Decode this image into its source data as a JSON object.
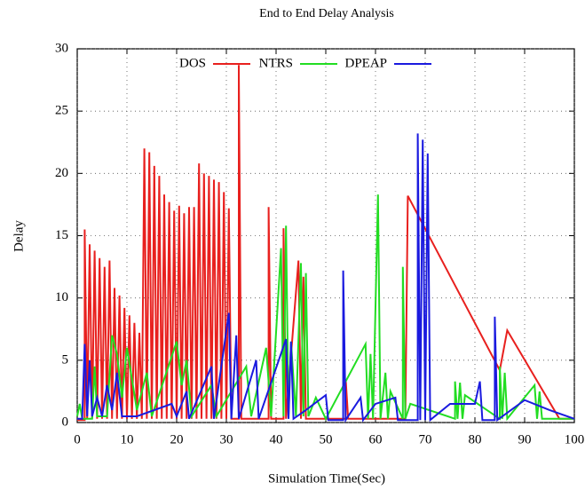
{
  "chart_data": {
    "type": "line",
    "title": "End to End Delay Analysis",
    "x_label": "Simulation Time(Sec)",
    "y_label": "Delay",
    "xlim": [
      0,
      100
    ],
    "xticks": [
      0,
      10,
      20,
      30,
      40,
      50,
      60,
      70,
      80,
      90,
      100
    ],
    "ylim": [
      0,
      30
    ],
    "yticks": [
      0,
      5,
      10,
      15,
      20,
      25,
      30
    ],
    "grid": true,
    "legend": "top",
    "series": [
      {
        "name": "DOS",
        "color": "#e8201e",
        "x": [
          0,
          1.5,
          1.5,
          2,
          2.5,
          3,
          3.5,
          4,
          4.5,
          5,
          5.5,
          6,
          6.5,
          7,
          7.5,
          8,
          8.5,
          9,
          9.5,
          10,
          10.5,
          11,
          11.5,
          12,
          12.5,
          13,
          13.5,
          14,
          14.5,
          15,
          15.5,
          16,
          16.5,
          17,
          17.5,
          18,
          18.5,
          19,
          19.5,
          20,
          20.5,
          21,
          21.5,
          22,
          22.5,
          23,
          23.5,
          24,
          24.5,
          25,
          25.5,
          26,
          26.5,
          27,
          27.5,
          28,
          28.5,
          29,
          29.5,
          30,
          30.5,
          31,
          32.5,
          32.5,
          33,
          38.5,
          38.5,
          39,
          41.5,
          41.5,
          42,
          44.5,
          45,
          45.5,
          46,
          54,
          54,
          54.5,
          66,
          66.5,
          85,
          86.5,
          97,
          100
        ],
        "values": [
          0.2,
          0.2,
          15.5,
          0.3,
          14.3,
          0.3,
          13.8,
          0.3,
          13.2,
          0.3,
          12.5,
          0.3,
          13,
          0.3,
          10.8,
          0.3,
          10.2,
          0.3,
          9.2,
          0.3,
          8.6,
          0.3,
          8,
          0.3,
          7.2,
          0.3,
          22,
          0.3,
          21.7,
          0.3,
          20.6,
          0.3,
          19.8,
          0.3,
          18.3,
          0.3,
          17.7,
          0.3,
          17,
          0.3,
          17.4,
          0.3,
          16.8,
          0.3,
          17.3,
          0.3,
          17.3,
          0.3,
          20.8,
          0.3,
          20,
          0.3,
          19.8,
          0.3,
          19.5,
          0.3,
          19.3,
          0.3,
          18.5,
          0.3,
          17.2,
          0.3,
          0.3,
          28.7,
          0.3,
          0.3,
          17.3,
          0.3,
          0.3,
          15.6,
          0.3,
          13,
          0.3,
          11.7,
          0.3,
          0.3,
          3.5,
          0.3,
          0.3,
          18.2,
          4.2,
          7.4,
          0.3,
          0.3
        ]
      },
      {
        "name": "NTRS",
        "color": "#22dd22",
        "x": [
          0,
          0.5,
          1,
          3,
          3.5,
          4,
          6,
          7,
          8,
          9,
          10,
          11,
          12,
          14,
          15,
          20,
          21,
          22,
          23,
          27,
          28,
          34,
          35,
          38,
          39,
          41,
          41.5,
          42,
          42.5,
          43,
          44,
          45,
          45.5,
          46,
          46.5,
          48,
          50,
          58,
          58.5,
          59,
          59.5,
          60.5,
          61,
          62,
          62.5,
          63,
          65.5,
          65.5,
          66,
          67,
          76,
          76,
          76.5,
          77,
          77.5,
          78,
          85,
          85,
          85.5,
          86,
          86.5,
          92,
          92.5,
          93,
          93.5,
          100
        ],
        "values": [
          0.5,
          1.5,
          0.3,
          0.3,
          4.5,
          0.5,
          0.5,
          7,
          5.5,
          2,
          6,
          3.5,
          1,
          4,
          0.5,
          6.5,
          3,
          5,
          0.5,
          3,
          0.5,
          4.5,
          0.5,
          6,
          0.5,
          14,
          0.5,
          15.8,
          0.5,
          6.5,
          0.5,
          12.8,
          0.5,
          12,
          0.5,
          2,
          0.3,
          6.3,
          0.3,
          5.5,
          0.3,
          18.3,
          0.3,
          4,
          0.3,
          2.5,
          0.3,
          12.5,
          0.3,
          1.5,
          0.3,
          3.3,
          0.3,
          3.2,
          0.3,
          2.2,
          0.3,
          4.5,
          0.3,
          4,
          0.3,
          3,
          0.3,
          2.5,
          0.3,
          0.3
        ]
      },
      {
        "name": "DPEAP",
        "color": "#1a1adf",
        "x": [
          0,
          1,
          1.5,
          2,
          2.5,
          3,
          4,
          5,
          6,
          7,
          8,
          9,
          12,
          19,
          20,
          22,
          22.5,
          27,
          27.5,
          30.5,
          31,
          32,
          32.5,
          36,
          36.5,
          42,
          42.5,
          43,
          43.5,
          46,
          50,
          50.5,
          53.5,
          53.5,
          54,
          57,
          57.5,
          60,
          64,
          64.5,
          68.5,
          68.5,
          69,
          69.5,
          70,
          70.5,
          71,
          75,
          80,
          81,
          81.5,
          84,
          84,
          84.5,
          90,
          95,
          100
        ],
        "values": [
          0.3,
          0.3,
          6.3,
          0.5,
          5,
          0.5,
          2,
          0.5,
          3,
          1,
          4,
          0.5,
          0.5,
          1.5,
          0.5,
          2.5,
          0.3,
          4.5,
          0.3,
          8.8,
          0.3,
          7,
          0.3,
          5,
          0.3,
          6.7,
          0.3,
          6.5,
          0.3,
          1,
          2.2,
          0.2,
          0.2,
          12.2,
          0.2,
          2,
          0.2,
          1.5,
          2,
          0.2,
          0.2,
          23.2,
          0.2,
          22.7,
          0.2,
          21.6,
          0.2,
          1.5,
          1.5,
          3.3,
          0.2,
          0.2,
          8.5,
          0.2,
          1.8,
          1,
          0.3
        ]
      }
    ]
  }
}
